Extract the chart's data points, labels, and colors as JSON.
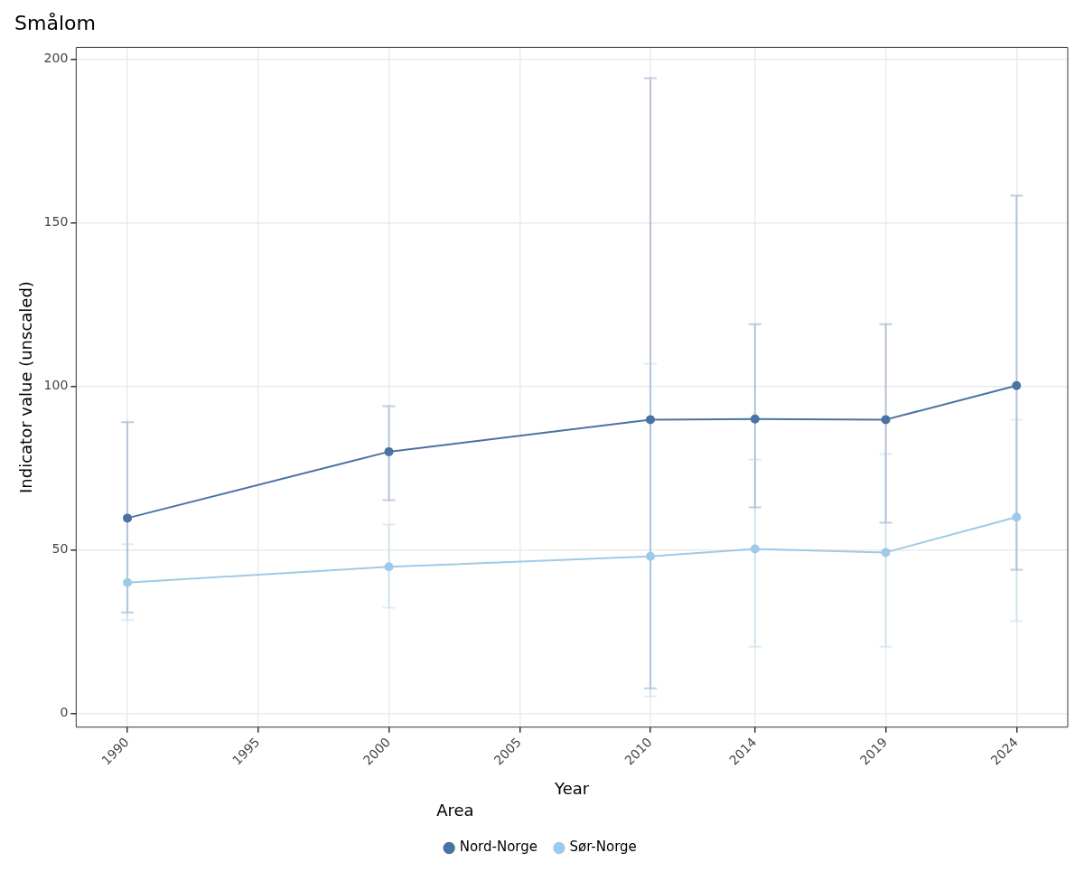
{
  "chart_data": {
    "type": "line",
    "title": "Smålom",
    "xlabel": "Year",
    "ylabel": "Indicator value (unscaled)",
    "legend_title": "Area",
    "x": [
      1990,
      2000,
      2010,
      2014,
      2019,
      2024
    ],
    "series": [
      {
        "name": "Nord-Norge",
        "color": "#4a72a2",
        "values": [
          59.7,
          80,
          89.8,
          90,
          89.8,
          100.2
        ],
        "errors": [
          [
            30.9,
            89
          ],
          [
            65.2,
            93.9
          ],
          [
            7.7,
            194.2
          ],
          [
            63,
            119
          ],
          [
            58.3,
            119
          ],
          [
            43.9,
            158.3
          ]
        ]
      },
      {
        "name": "Sør-Norge",
        "color": "#9ecae9",
        "values": [
          40,
          44.8,
          48,
          50.3,
          49.2,
          60
        ],
        "errors": [
          [
            28.5,
            51.7
          ],
          [
            32.3,
            57.7
          ],
          [
            5.2,
            106.9
          ],
          [
            20.4,
            77.6
          ],
          [
            20.4,
            79.3
          ],
          [
            28.2,
            89.8
          ]
        ]
      }
    ],
    "xlim": [
      1988.04,
      2025.96
    ],
    "ylim": [
      -4.2,
      203.6
    ],
    "xticks": [
      1990,
      1995,
      2000,
      2005,
      2010,
      2014,
      2019,
      2024
    ],
    "yticks": [
      0,
      50,
      100,
      150,
      200
    ],
    "grid": true,
    "legend": "bottom",
    "marker": "circle",
    "line_style": "solid"
  }
}
